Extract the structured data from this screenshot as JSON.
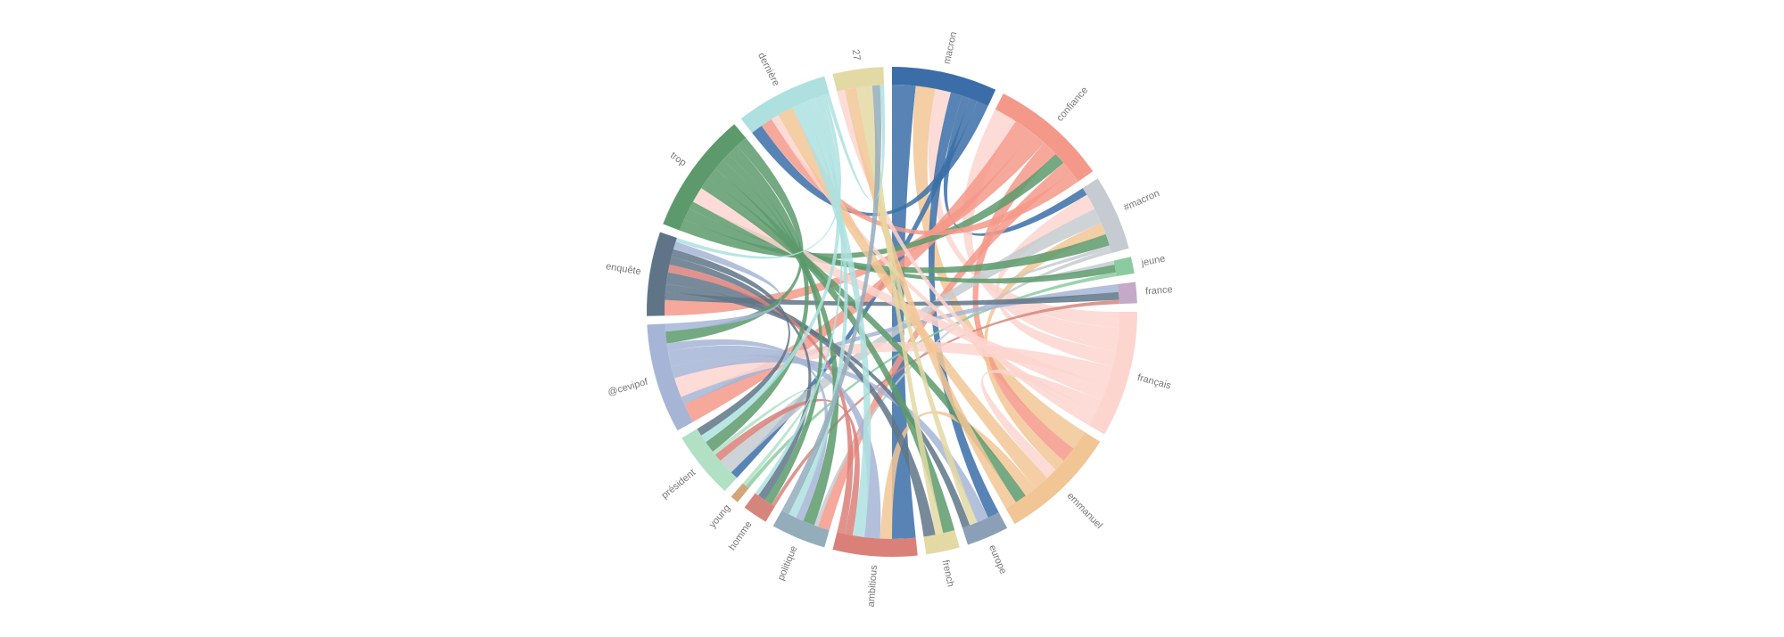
{
  "nodes": [
    {
      "label": "macron",
      "color": "#3b6ea8"
    },
    {
      "label": "confiance",
      "color": "#f4998a"
    },
    {
      "label": "#macron",
      "color": "#c5cbd0"
    },
    {
      "label": "jeune",
      "color": "#8ccba0"
    },
    {
      "label": "france",
      "color": "#c5a9c8"
    },
    {
      "label": "français",
      "color": "#fdd5cf"
    },
    {
      "label": "emmanuel",
      "color": "#f2c595"
    },
    {
      "label": "europe",
      "color": "#8ba0b7"
    },
    {
      "label": "french",
      "color": "#e3d9a5"
    },
    {
      "label": "ambitious",
      "color": "#db8079"
    },
    {
      "label": "politique",
      "color": "#93adbb"
    },
    {
      "label": "homme",
      "color": "#d5867c"
    },
    {
      "label": "young",
      "color": "#d1a77a"
    },
    {
      "label": "président",
      "color": "#b1e0c5"
    },
    {
      "label": "@cevipof",
      "color": "#a6b5d6"
    },
    {
      "label": "enquête",
      "color": "#5f7587"
    },
    {
      "label": "trop",
      "color": "#5c9a6c"
    },
    {
      "label": "dernière",
      "color": "#aee0e0"
    },
    {
      "label": "27",
      "color": "#e3d9a5"
    }
  ],
  "links": [
    {
      "source": 0,
      "target": 9,
      "value": 6
    },
    {
      "source": 0,
      "target": 6,
      "value": 5
    },
    {
      "source": 0,
      "target": 5,
      "value": 4
    },
    {
      "source": 0,
      "target": 7,
      "value": 3
    },
    {
      "source": 0,
      "target": 2,
      "value": 2
    },
    {
      "source": 0,
      "target": 13,
      "value": 2
    },
    {
      "source": 0,
      "target": 17,
      "value": 3
    },
    {
      "source": 1,
      "target": 5,
      "value": 6
    },
    {
      "source": 1,
      "target": 14,
      "value": 5
    },
    {
      "source": 1,
      "target": 15,
      "value": 4
    },
    {
      "source": 1,
      "target": 6,
      "value": 4
    },
    {
      "source": 1,
      "target": 16,
      "value": 3
    },
    {
      "source": 1,
      "target": 10,
      "value": 3
    },
    {
      "source": 1,
      "target": 17,
      "value": 3
    },
    {
      "source": 2,
      "target": 5,
      "value": 4
    },
    {
      "source": 2,
      "target": 13,
      "value": 4
    },
    {
      "source": 2,
      "target": 6,
      "value": 3
    },
    {
      "source": 2,
      "target": 16,
      "value": 3
    },
    {
      "source": 2,
      "target": 3,
      "value": 1
    },
    {
      "source": 2,
      "target": 10,
      "value": 1
    },
    {
      "source": 3,
      "target": 16,
      "value": 2
    },
    {
      "source": 3,
      "target": 12,
      "value": 1
    },
    {
      "source": 4,
      "target": 14,
      "value": 2
    },
    {
      "source": 4,
      "target": 15,
      "value": 2
    },
    {
      "source": 4,
      "target": 11,
      "value": 1
    },
    {
      "source": 5,
      "target": 14,
      "value": 5
    },
    {
      "source": 5,
      "target": 16,
      "value": 4
    },
    {
      "source": 5,
      "target": 6,
      "value": 3
    },
    {
      "source": 5,
      "target": 17,
      "value": 2
    },
    {
      "source": 5,
      "target": 18,
      "value": 2
    },
    {
      "source": 6,
      "target": 17,
      "value": 4
    },
    {
      "source": 6,
      "target": 9,
      "value": 3
    },
    {
      "source": 6,
      "target": 16,
      "value": 3
    },
    {
      "source": 6,
      "target": 18,
      "value": 3
    },
    {
      "source": 7,
      "target": 14,
      "value": 3
    },
    {
      "source": 7,
      "target": 18,
      "value": 2
    },
    {
      "source": 7,
      "target": 15,
      "value": 2
    },
    {
      "source": 8,
      "target": 16,
      "value": 3
    },
    {
      "source": 8,
      "target": 18,
      "value": 2
    },
    {
      "source": 8,
      "target": 15,
      "value": 3
    },
    {
      "source": 9,
      "target": 14,
      "value": 4
    },
    {
      "source": 9,
      "target": 17,
      "value": 3
    },
    {
      "source": 9,
      "target": 13,
      "value": 2
    },
    {
      "source": 9,
      "target": 15,
      "value": 2
    },
    {
      "source": 10,
      "target": 16,
      "value": 3
    },
    {
      "source": 10,
      "target": 14,
      "value": 2
    },
    {
      "source": 10,
      "target": 17,
      "value": 2
    },
    {
      "source": 10,
      "target": 18,
      "value": 2
    },
    {
      "source": 11,
      "target": 16,
      "value": 2
    },
    {
      "source": 11,
      "target": 15,
      "value": 2
    },
    {
      "source": 11,
      "target": 17,
      "value": 1
    },
    {
      "source": 12,
      "target": 13,
      "value": 1
    },
    {
      "source": 13,
      "target": 16,
      "value": 3
    },
    {
      "source": 13,
      "target": 17,
      "value": 2
    },
    {
      "source": 13,
      "target": 15,
      "value": 2
    },
    {
      "source": 14,
      "target": 16,
      "value": 3
    },
    {
      "source": 14,
      "target": 15,
      "value": 2
    },
    {
      "source": 15,
      "target": 17,
      "value": 1
    },
    {
      "source": 17,
      "target": 18,
      "value": 1
    }
  ]
}
